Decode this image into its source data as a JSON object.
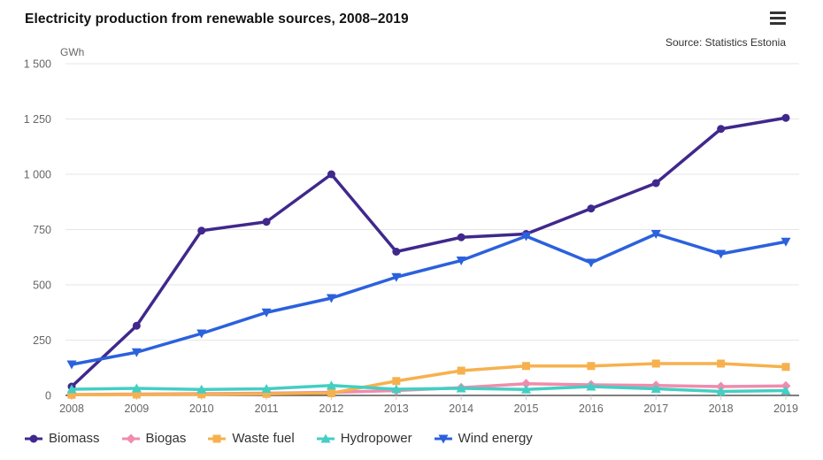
{
  "header": {
    "title": "Electricity production from renewable sources, 2008–2019",
    "source": "Source: Statistics Estonia",
    "menu_icon": "hamburger-icon"
  },
  "chart_data": {
    "type": "line",
    "title": "Electricity production from renewable sources, 2008–2019",
    "ylabel": "GWh",
    "xlabel": "",
    "x": [
      "2008",
      "2009",
      "2010",
      "2011",
      "2012",
      "2013",
      "2014",
      "2015",
      "2016",
      "2017",
      "2018",
      "2019"
    ],
    "ylim": [
      0,
      1500
    ],
    "yticks": [
      0,
      250,
      500,
      750,
      1000,
      1250,
      1500
    ],
    "ytick_labels": [
      "0",
      "250",
      "500",
      "750",
      "1 000",
      "1 250",
      "1 500"
    ],
    "grid": true,
    "legend_position": "bottom-left",
    "series": [
      {
        "name": "Biomass",
        "color": "#40288c",
        "marker": "circle",
        "values": [
          40,
          315,
          745,
          785,
          1000,
          650,
          715,
          730,
          845,
          960,
          1205,
          1255
        ]
      },
      {
        "name": "Biogas",
        "color": "#f08cad",
        "marker": "diamond",
        "values": [
          4,
          6,
          8,
          10,
          14,
          22,
          35,
          53,
          48,
          45,
          40,
          43
        ]
      },
      {
        "name": "Waste fuel",
        "color": "#f6b14e",
        "marker": "square",
        "values": [
          3,
          4,
          5,
          7,
          10,
          65,
          112,
          133,
          133,
          144,
          144,
          129
        ]
      },
      {
        "name": "Hydropower",
        "color": "#43cfc3",
        "marker": "triangle-up",
        "values": [
          28,
          32,
          27,
          30,
          45,
          28,
          32,
          27,
          40,
          30,
          18,
          22
        ]
      },
      {
        "name": "Wind energy",
        "color": "#2b61dc",
        "marker": "triangle-down",
        "values": [
          140,
          195,
          280,
          375,
          440,
          535,
          610,
          720,
          600,
          730,
          640,
          695
        ]
      }
    ],
    "colors": {
      "gridline": "#e6e6e6",
      "axis_line": "#333333",
      "tick": "#cccccc",
      "axis_label": "#666666",
      "legend_text": "#333333"
    }
  }
}
